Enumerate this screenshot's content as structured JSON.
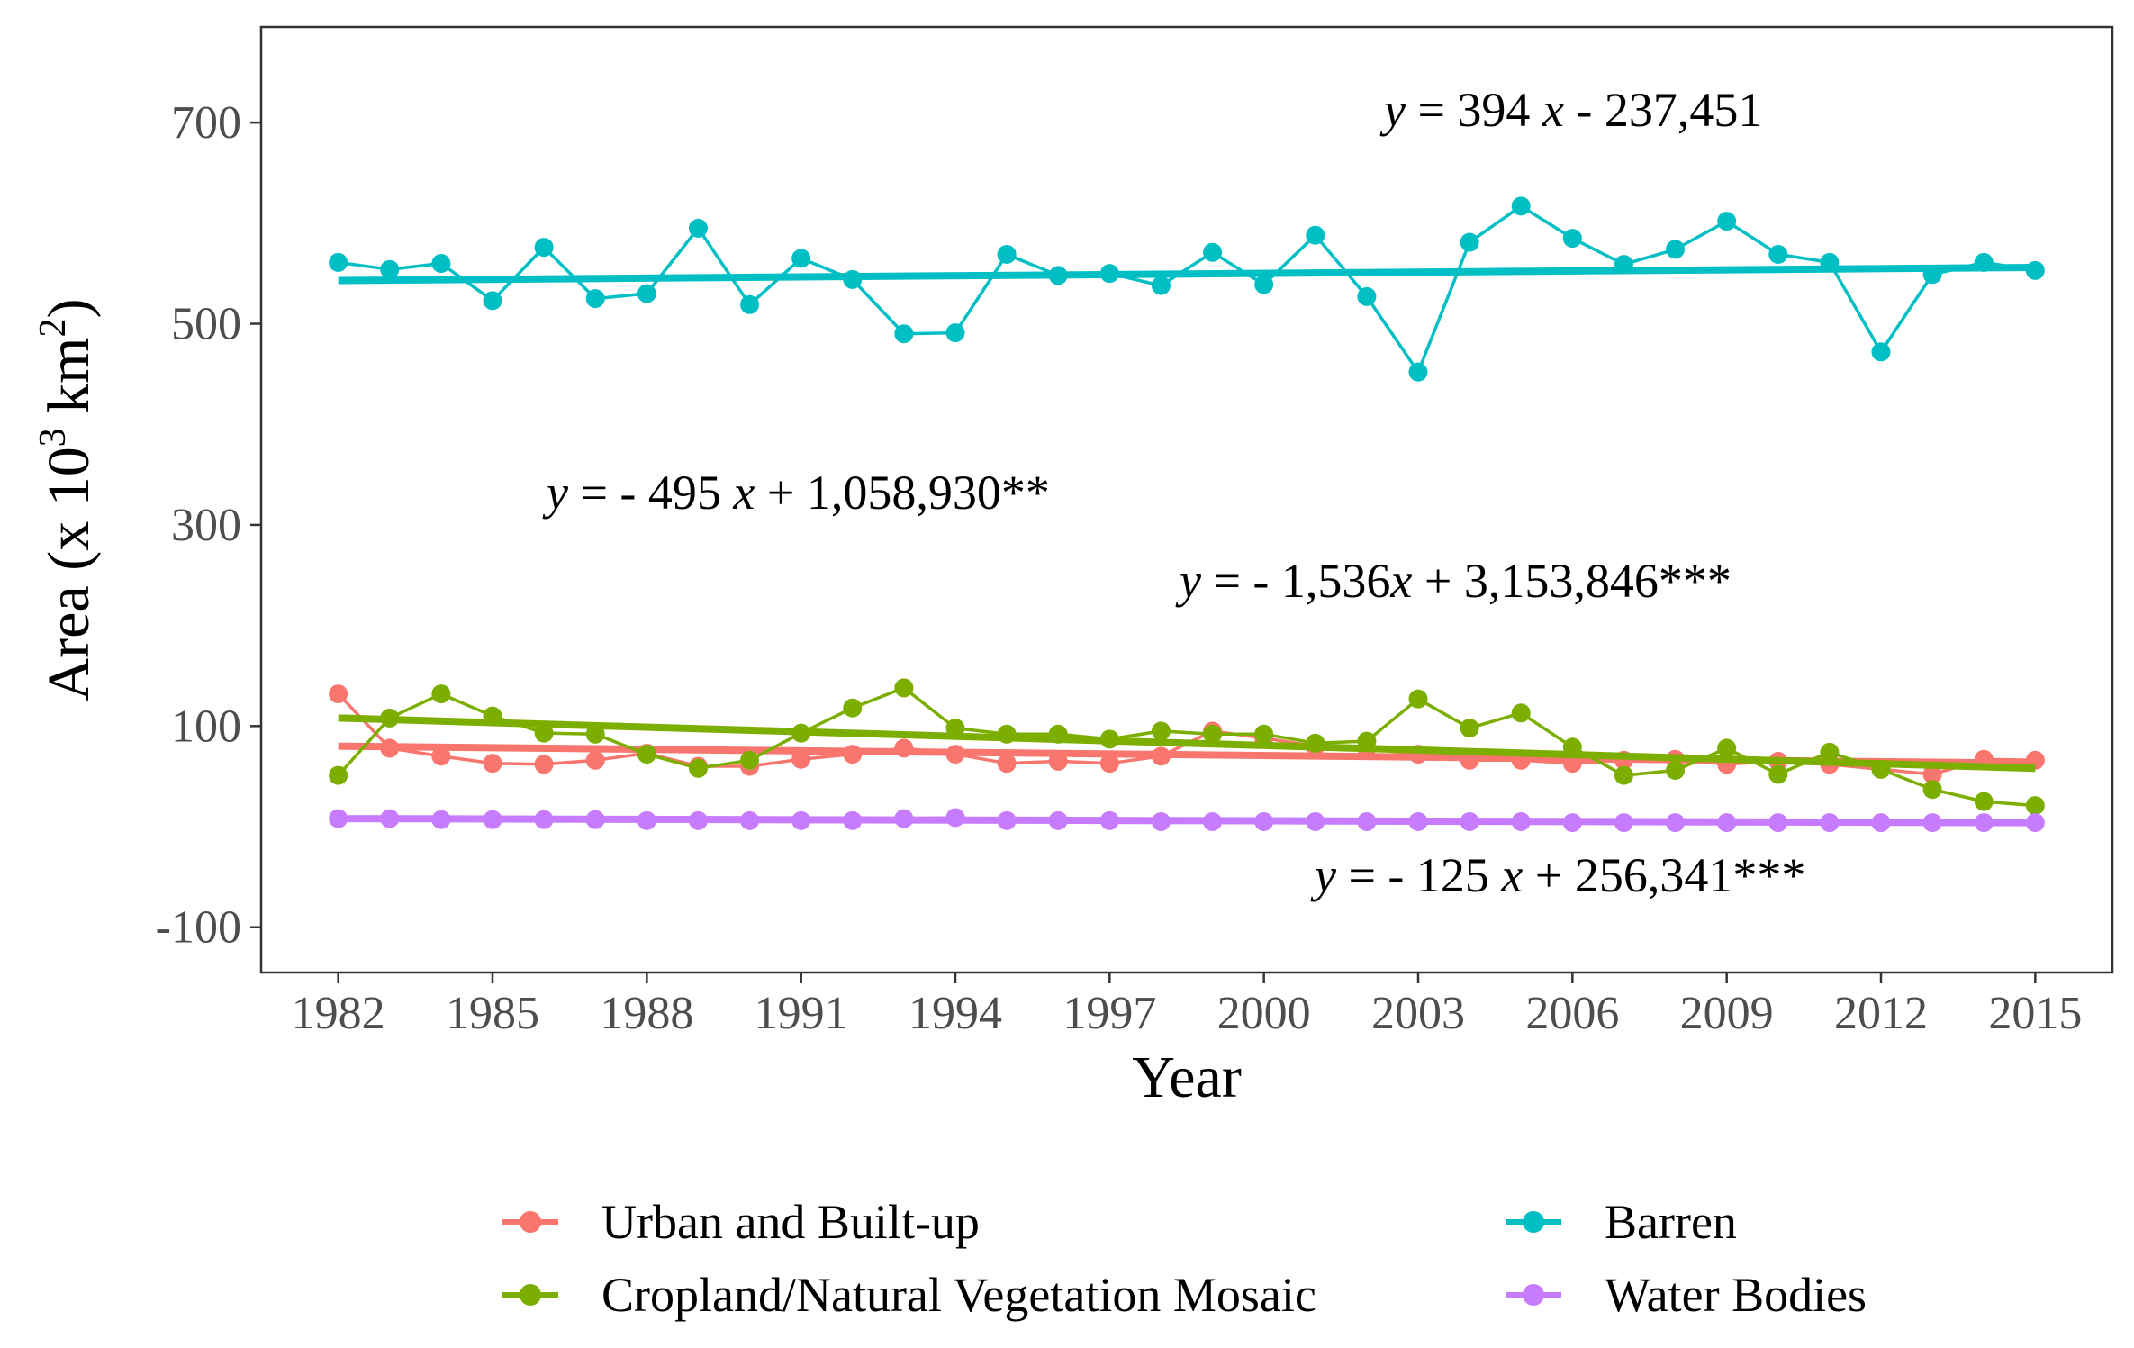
{
  "chart_data": {
    "type": "line",
    "title": "",
    "xlabel": "Year",
    "ylabel": "Area (x 10³ km²)",
    "ylabel_parts": {
      "pre": "Area (x 10",
      "sup1": "3",
      "mid": " km",
      "sup2": "2",
      "post": ")"
    },
    "xlim": [
      1980.5,
      2016.5
    ],
    "ylim": [
      -145,
      795
    ],
    "grid": false,
    "x_ticks": [
      1982,
      1985,
      1988,
      1991,
      1994,
      1997,
      2000,
      2003,
      2006,
      2009,
      2012,
      2015
    ],
    "x_tick_labels": [
      "1982",
      "1985",
      "1988",
      "1991",
      "1994",
      "1997",
      "2000",
      "2003",
      "2006",
      "2009",
      "2012",
      "2015"
    ],
    "y_ticks": [
      -100,
      100,
      300,
      500,
      700
    ],
    "y_tick_labels": [
      "-100",
      "100",
      "300",
      "500",
      "700"
    ],
    "x": [
      1982,
      1983,
      1984,
      1985,
      1986,
      1987,
      1988,
      1989,
      1990,
      1991,
      1992,
      1993,
      1994,
      1995,
      1996,
      1997,
      1998,
      1999,
      2000,
      2001,
      2002,
      2003,
      2004,
      2005,
      2006,
      2007,
      2008,
      2009,
      2010,
      2011,
      2012,
      2013,
      2014,
      2015
    ],
    "series": [
      {
        "name": "Urban and Built-up",
        "color": "#F8766D",
        "values": [
          132,
          78,
          70,
          63,
          62,
          66,
          73,
          60,
          60,
          67,
          72,
          78,
          72,
          63,
          65,
          63,
          70,
          95,
          88,
          80,
          78,
          72,
          66,
          66,
          63,
          66,
          67,
          62,
          65,
          62,
          57,
          52,
          67,
          66
        ],
        "trend": {
          "x0": 1982,
          "y0": 80,
          "x1": 2015,
          "y1": 63
        }
      },
      {
        "name": "Cropland/Natural Vegetation Mosaic",
        "color": "#7CAE00",
        "values": [
          51,
          108,
          132,
          110,
          93,
          92,
          72,
          58,
          66,
          93,
          118,
          138,
          98,
          92,
          92,
          87,
          95,
          92,
          92,
          83,
          85,
          127,
          98,
          113,
          79,
          51,
          56,
          78,
          52,
          74,
          57,
          37,
          25,
          21
        ],
        "trend": {
          "x0": 1982,
          "y0": 108,
          "x1": 2015,
          "y1": 58
        }
      },
      {
        "name": "Barren",
        "color": "#00BFC4",
        "values": [
          561,
          554,
          560,
          523,
          576,
          525,
          530,
          595,
          519,
          565,
          544,
          490,
          491,
          569,
          548,
          550,
          538,
          571,
          539,
          588,
          527,
          452,
          581,
          617,
          585,
          559,
          574,
          602,
          569,
          561,
          472,
          549,
          561,
          553
        ],
        "trend": {
          "x0": 1982,
          "y0": 543,
          "x1": 2015,
          "y1": 556
        }
      },
      {
        "name": "Water Bodies",
        "color": "#C77CFF",
        "values": [
          8,
          8,
          7,
          7,
          7,
          7,
          6,
          6,
          6,
          6,
          6,
          8,
          9,
          6,
          6,
          6,
          5,
          5,
          5,
          5,
          5,
          5,
          5,
          5,
          4,
          4,
          4,
          4,
          4,
          4,
          4,
          4,
          4,
          4
        ],
        "trend": {
          "x0": 1982,
          "y0": 8,
          "x1": 2015,
          "y1": 4
        }
      }
    ],
    "annotations": [
      {
        "id": "eq-barren",
        "parts": [
          {
            "t": "y",
            "i": true
          },
          {
            "t": " =  394 "
          },
          {
            "t": "x",
            "i": true
          },
          {
            "t": " -  237,451"
          }
        ]
      },
      {
        "id": "eq-cropland",
        "parts": [
          {
            "t": "y",
            "i": true
          },
          {
            "t": " =  -  495 "
          },
          {
            "t": "x",
            "i": true
          },
          {
            "t": " +  1,058,930**"
          }
        ]
      },
      {
        "id": "eq-urban",
        "parts": [
          {
            "t": "y",
            "i": true
          },
          {
            "t": " =  -  1,536"
          },
          {
            "t": "x",
            "i": true
          },
          {
            "t": " +  3,153,846***"
          }
        ]
      },
      {
        "id": "eq-water",
        "parts": [
          {
            "t": "y",
            "i": true
          },
          {
            "t": " =  -  125 "
          },
          {
            "t": "x",
            "i": true
          },
          {
            "t": " +  256,341***"
          }
        ]
      }
    ],
    "legend": {
      "position": "bottom",
      "columns": 2,
      "items": [
        "Urban and Built-up",
        "Barren",
        "Cropland/Natural Vegetation Mosaic",
        "Water Bodies"
      ]
    }
  }
}
